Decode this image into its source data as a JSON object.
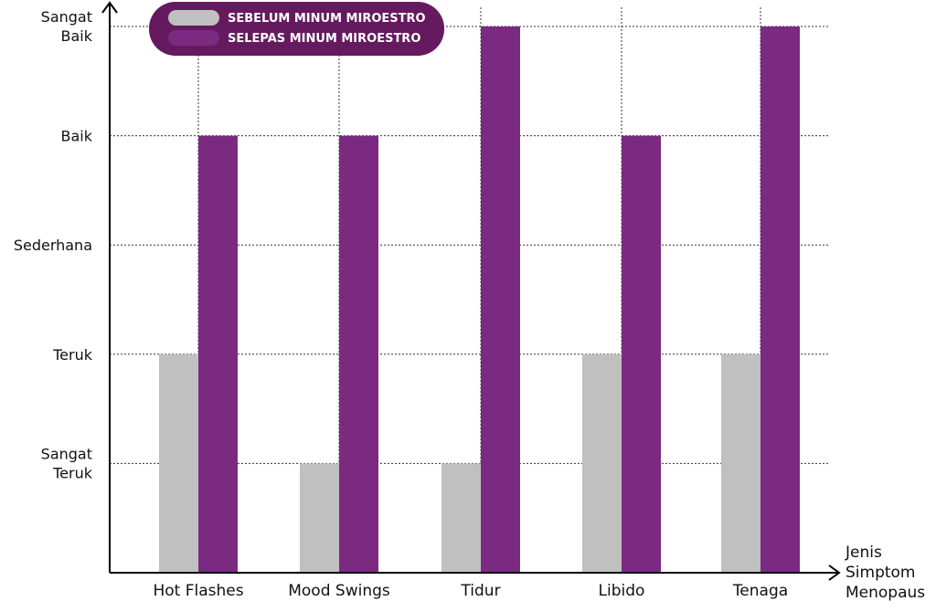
{
  "chart_data": {
    "type": "bar",
    "categories": [
      "Hot Flashes",
      "Mood Swings",
      "Tidur",
      "Libido",
      "Tenaga"
    ],
    "y_levels": [
      {
        "lines": [
          "Sangat",
          "Teruk"
        ]
      },
      {
        "lines": [
          "Teruk"
        ]
      },
      {
        "lines": [
          "Sederhana"
        ]
      },
      {
        "lines": [
          "Baik"
        ]
      },
      {
        "lines": [
          "Sangat",
          "Baik"
        ]
      }
    ],
    "ylim": [
      0,
      5
    ],
    "xlabel_lines": [
      "Jenis",
      "Simptom",
      "Menopaus"
    ],
    "series": [
      {
        "name": "SEBELUM MINUM MIROESTRO",
        "values": [
          2,
          1,
          1,
          2,
          2
        ],
        "color": "#c0c0c0"
      },
      {
        "name": "SELEPAS MINUM MIROESTRO",
        "values": [
          4,
          4,
          5,
          4,
          5
        ],
        "color": "#7b2a82"
      }
    ],
    "legend": {
      "placement": "top-left",
      "background": "#651a5f"
    },
    "grid": "dotted"
  }
}
